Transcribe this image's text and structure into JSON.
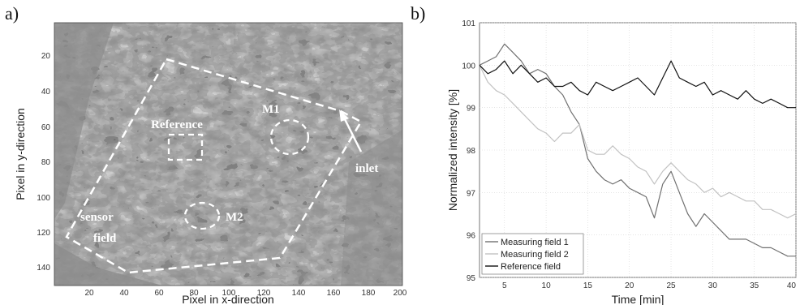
{
  "panels": {
    "a": "a)",
    "b": "b)"
  },
  "image_panel": {
    "xlabel": "Pixel in x-direction",
    "ylabel": "Pixel in y-direction",
    "x_ticks": [
      "20",
      "40",
      "60",
      "80",
      "100",
      "120",
      "140",
      "160",
      "180",
      "200"
    ],
    "y_ticks": [
      "20",
      "40",
      "60",
      "80",
      "100",
      "120",
      "140"
    ],
    "annotations": {
      "m1": "M1",
      "m2": "M2",
      "reference": "Reference",
      "inlet": "inlet",
      "sensor": "sensor",
      "field": "field"
    }
  },
  "chart_data": {
    "type": "line",
    "xlabel": "Time [min]",
    "ylabel": "Normalized intensity [%]",
    "xlim": [
      2,
      40
    ],
    "ylim": [
      95,
      101
    ],
    "x_ticks": [
      "5",
      "10",
      "15",
      "20",
      "25",
      "30",
      "35",
      "40"
    ],
    "y_ticks": [
      "95",
      "96",
      "97",
      "98",
      "99",
      "100",
      "101"
    ],
    "grid": true,
    "legend_position": "bottom-left",
    "series": [
      {
        "name": "Measuring field 1",
        "color": "#707070",
        "x": [
          2,
          3,
          4,
          5,
          6,
          7,
          8,
          9,
          10,
          11,
          12,
          13,
          14,
          15,
          16,
          17,
          18,
          19,
          20,
          21,
          22,
          23,
          24,
          25,
          26,
          27,
          28,
          29,
          30,
          31,
          32,
          33,
          34,
          35,
          36,
          37,
          38,
          39,
          40
        ],
        "y": [
          100.0,
          100.1,
          100.2,
          100.5,
          100.3,
          100.1,
          99.8,
          99.9,
          99.8,
          99.5,
          99.3,
          98.9,
          98.6,
          97.8,
          97.5,
          97.3,
          97.2,
          97.3,
          97.1,
          97.0,
          96.9,
          96.4,
          97.2,
          97.5,
          97.0,
          96.5,
          96.2,
          96.5,
          96.3,
          96.1,
          95.9,
          95.9,
          95.9,
          95.8,
          95.7,
          95.7,
          95.6,
          95.5,
          95.5
        ]
      },
      {
        "name": "Measuring field 2",
        "color": "#c2c2c2",
        "x": [
          2,
          3,
          4,
          5,
          6,
          7,
          8,
          9,
          10,
          11,
          12,
          13,
          14,
          15,
          16,
          17,
          18,
          19,
          20,
          21,
          22,
          23,
          24,
          25,
          26,
          27,
          28,
          29,
          30,
          31,
          32,
          33,
          34,
          35,
          36,
          37,
          38,
          39,
          40
        ],
        "y": [
          100.0,
          99.6,
          99.4,
          99.3,
          99.1,
          98.9,
          98.7,
          98.5,
          98.4,
          98.2,
          98.4,
          98.4,
          98.6,
          98.0,
          97.9,
          97.9,
          98.1,
          97.9,
          97.8,
          97.6,
          97.5,
          97.2,
          97.5,
          97.7,
          97.5,
          97.3,
          97.2,
          97.0,
          97.1,
          96.9,
          97.0,
          96.9,
          96.8,
          96.8,
          96.6,
          96.6,
          96.5,
          96.4,
          96.5
        ]
      },
      {
        "name": "Reference field",
        "color": "#111111",
        "x": [
          2,
          3,
          4,
          5,
          6,
          7,
          8,
          9,
          10,
          11,
          12,
          13,
          14,
          15,
          16,
          17,
          18,
          19,
          20,
          21,
          22,
          23,
          24,
          25,
          26,
          27,
          28,
          29,
          30,
          31,
          32,
          33,
          34,
          35,
          36,
          37,
          38,
          39,
          40
        ],
        "y": [
          100.0,
          99.8,
          99.9,
          100.1,
          99.8,
          100.0,
          99.8,
          99.6,
          99.7,
          99.5,
          99.5,
          99.6,
          99.4,
          99.3,
          99.6,
          99.5,
          99.4,
          99.5,
          99.6,
          99.7,
          99.5,
          99.3,
          99.7,
          100.1,
          99.7,
          99.6,
          99.5,
          99.6,
          99.3,
          99.4,
          99.3,
          99.2,
          99.4,
          99.2,
          99.1,
          99.2,
          99.1,
          99.0,
          99.0
        ]
      }
    ]
  }
}
